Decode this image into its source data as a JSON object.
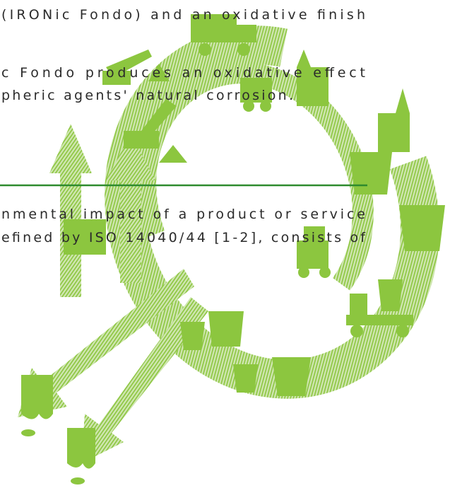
{
  "paragraphs": [
    {
      "lines": [
        "(IRONic Fondo) and an oxidative finish"
      ]
    },
    {
      "lines": [
        "c Fondo produces an oxidative effect",
        "pheric agents' natural corrosion."
      ]
    },
    {
      "lines": [
        "nmental impact of a product or service",
        "efined by ISO 14040/44 [1-2], consists of"
      ]
    }
  ]
}
